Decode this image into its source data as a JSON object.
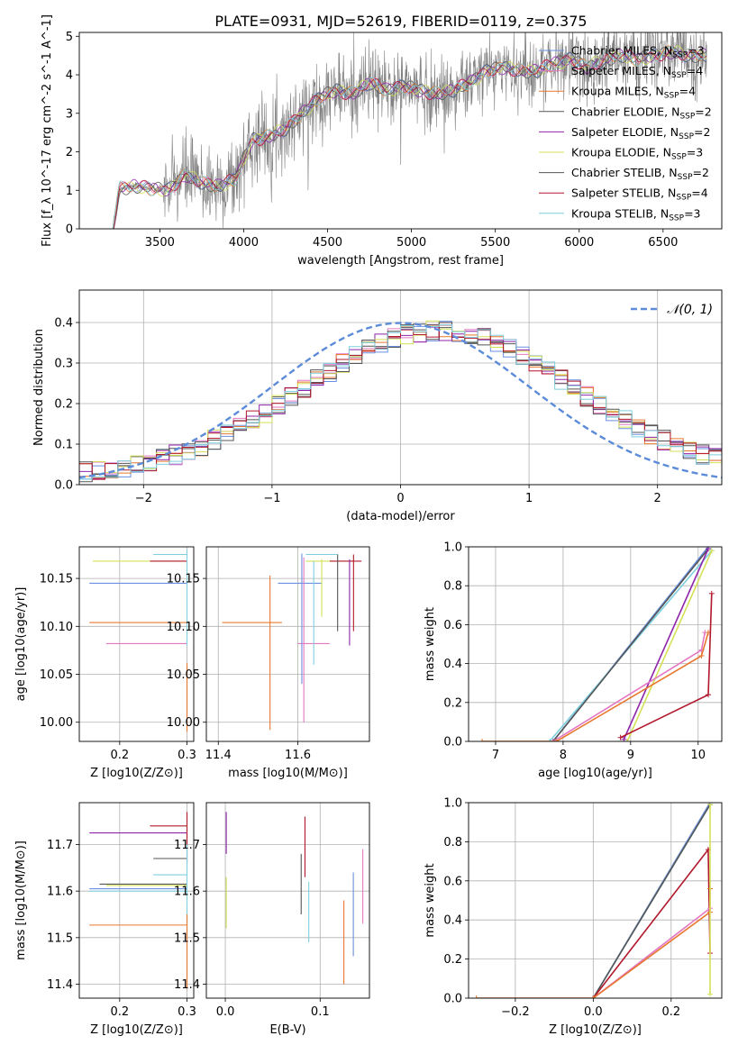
{
  "figure_title": "PLATE=0931, MJD=52619, FIBERID=0119, z=0.375",
  "colors": {
    "axes": "#000000",
    "grid": "#b0b0b0",
    "normal_curve": "#5b8bd9",
    "spectrum_data": "#808080"
  },
  "chart_data": [
    {
      "panel": "spectrum",
      "type": "line",
      "xlabel": "wavelength [Angstrom, rest frame]",
      "ylabel": "Flux [f_λ 10^-17 erg cm^-2 s^-1 A^-1]",
      "xlim": [
        3020,
        6850
      ],
      "ylim": [
        0,
        5.1
      ],
      "xticks": [
        "3500",
        "4000",
        "4500",
        "5000",
        "5500",
        "6000",
        "6500"
      ],
      "yticks": [
        "0",
        "1",
        "2",
        "3",
        "4",
        "5"
      ],
      "grid": false,
      "legend_position": "right",
      "legend": [
        {
          "name": "Chabrier MILES, N_SSP=3",
          "base": "Chabrier MILES, N",
          "sub": "SSP",
          "tail": "=3",
          "color": "#6a8fe0"
        },
        {
          "name": "Salpeter MILES, N_SSP=4",
          "base": "Salpeter MILES, N",
          "sub": "SSP",
          "tail": "=4",
          "color": "#e377c2"
        },
        {
          "name": "Kroupa MILES, N_SSP=4",
          "base": "Kroupa MILES, N",
          "sub": "SSP",
          "tail": "=4",
          "color": "#e8772e"
        },
        {
          "name": "Chabrier ELODIE, N_SSP=2",
          "base": "Chabrier ELODIE, N",
          "sub": "SSP",
          "tail": "=2",
          "color": "#555555"
        },
        {
          "name": "Salpeter ELODIE, N_SSP=2",
          "base": "Salpeter ELODIE, N",
          "sub": "SSP",
          "tail": "=2",
          "color": "#8e24aa"
        },
        {
          "name": "Kroupa ELODIE, N_SSP=3",
          "base": "Kroupa ELODIE, N",
          "sub": "SSP",
          "tail": "=3",
          "color": "#d4e157"
        },
        {
          "name": "Chabrier STELIB, N_SSP=2",
          "base": "Chabrier STELIB, N",
          "sub": "SSP",
          "tail": "=2",
          "color": "#555555"
        },
        {
          "name": "Salpeter STELIB, N_SSP=4",
          "base": "Salpeter STELIB, N",
          "sub": "SSP",
          "tail": "=4",
          "color": "#b2182b"
        },
        {
          "name": "Kroupa STELIB, N_SSP=3",
          "base": "Kroupa STELIB, N",
          "sub": "SSP",
          "tail": "=3",
          "color": "#7ecfe0"
        }
      ],
      "data_trend": {
        "wave": [
          3220,
          3260,
          3350,
          3450,
          3550,
          3650,
          3750,
          3850,
          3950,
          4050,
          4150,
          4250,
          4350,
          4450,
          4550,
          4650,
          4750,
          4850,
          4950,
          5050,
          5150,
          5250,
          5350,
          5450,
          5550,
          5650,
          5750,
          5850,
          5950,
          6050,
          6150,
          6250,
          6350,
          6450,
          6550,
          6650,
          6750
        ],
        "flux": [
          0,
          1.05,
          1.1,
          1.05,
          1.0,
          1.4,
          1.2,
          1.1,
          1.3,
          2.3,
          2.4,
          2.6,
          3.0,
          3.4,
          3.6,
          3.5,
          3.8,
          3.6,
          3.7,
          3.6,
          3.5,
          3.6,
          3.8,
          4.1,
          4.2,
          4.1,
          4.1,
          4.3,
          4.4,
          4.2,
          4.4,
          4.5,
          4.4,
          4.5,
          4.6,
          4.5,
          4.5
        ]
      }
    },
    {
      "panel": "residuals",
      "type": "histogram",
      "xlabel": "(data-model)/error",
      "ylabel": "Normed distribution",
      "xlim": [
        -2.5,
        2.5
      ],
      "ylim": [
        0,
        0.48
      ],
      "xticks": [
        "−2",
        "−1",
        "0",
        "1",
        "2"
      ],
      "yticks": [
        "0.0",
        "0.1",
        "0.2",
        "0.3",
        "0.4"
      ],
      "grid": true,
      "legend": [
        {
          "name": "N(0,1)",
          "label": "𝒩(0, 1)"
        }
      ],
      "legend_position": "top-right",
      "bin_edges_range": [
        -2.5,
        2.5
      ],
      "bins": 50
    },
    {
      "panel": "age-vs-Z",
      "type": "scatter",
      "xlabel": "Z [log10(Z/Z⊙)]",
      "ylabel": "age [log10(age/yr)]",
      "xlim": [
        0.14,
        0.31
      ],
      "ylim": [
        9.98,
        10.183
      ],
      "xticks": [
        "0.2",
        "0.3"
      ],
      "yticks": [
        "10.00",
        "10.05",
        "10.10",
        "10.15"
      ],
      "grid": true
    },
    {
      "panel": "age-vs-mass",
      "type": "scatter",
      "xlabel": "mass [log10(M/M⊙)]",
      "xlim": [
        11.37,
        11.78
      ],
      "ylim": [
        9.98,
        10.183
      ],
      "xticks": [
        "11.4",
        "11.6"
      ],
      "yticks": [
        "10.00",
        "10.05",
        "10.10",
        "10.15"
      ],
      "grid": true
    },
    {
      "panel": "mass-weight-vs-age",
      "type": "line",
      "xlabel": "age [log10(age/yr)]",
      "ylabel": "mass weight",
      "xlim": [
        6.6,
        10.35
      ],
      "ylim": [
        0,
        1.0
      ],
      "xticks": [
        "7",
        "8",
        "9",
        "10"
      ],
      "yticks": [
        "0.0",
        "0.2",
        "0.4",
        "0.6",
        "0.8",
        "1.0"
      ],
      "grid": true
    },
    {
      "panel": "mass-vs-Z",
      "type": "scatter",
      "xlabel": "Z [log10(Z/Z⊙)]",
      "ylabel": "mass [log10(M/M⊙)]",
      "xlim": [
        0.14,
        0.31
      ],
      "ylim": [
        11.37,
        11.79
      ],
      "xticks": [
        "0.2",
        "0.3"
      ],
      "yticks": [
        "11.4",
        "11.5",
        "11.6",
        "11.7"
      ],
      "grid": true
    },
    {
      "panel": "mass-vs-EBV",
      "type": "scatter",
      "xlabel": "E(B-V)",
      "xlim": [
        -0.02,
        0.152
      ],
      "ylim": [
        11.37,
        11.79
      ],
      "xticks": [
        "0.0",
        "0.1"
      ],
      "yticks": [
        "11.4",
        "11.5",
        "11.6",
        "11.7"
      ],
      "grid": true
    },
    {
      "panel": "mass-weight-vs-Z",
      "type": "line",
      "xlabel": "Z [log10(Z/Z⊙)]",
      "ylabel": "mass weight",
      "xlim": [
        -0.32,
        0.33
      ],
      "ylim": [
        0,
        1.0
      ],
      "xticks": [
        "−0.2",
        "0.0",
        "0.2"
      ],
      "yticks": [
        "0.0",
        "0.2",
        "0.4",
        "0.6",
        "0.8",
        "1.0"
      ],
      "grid": true
    }
  ]
}
